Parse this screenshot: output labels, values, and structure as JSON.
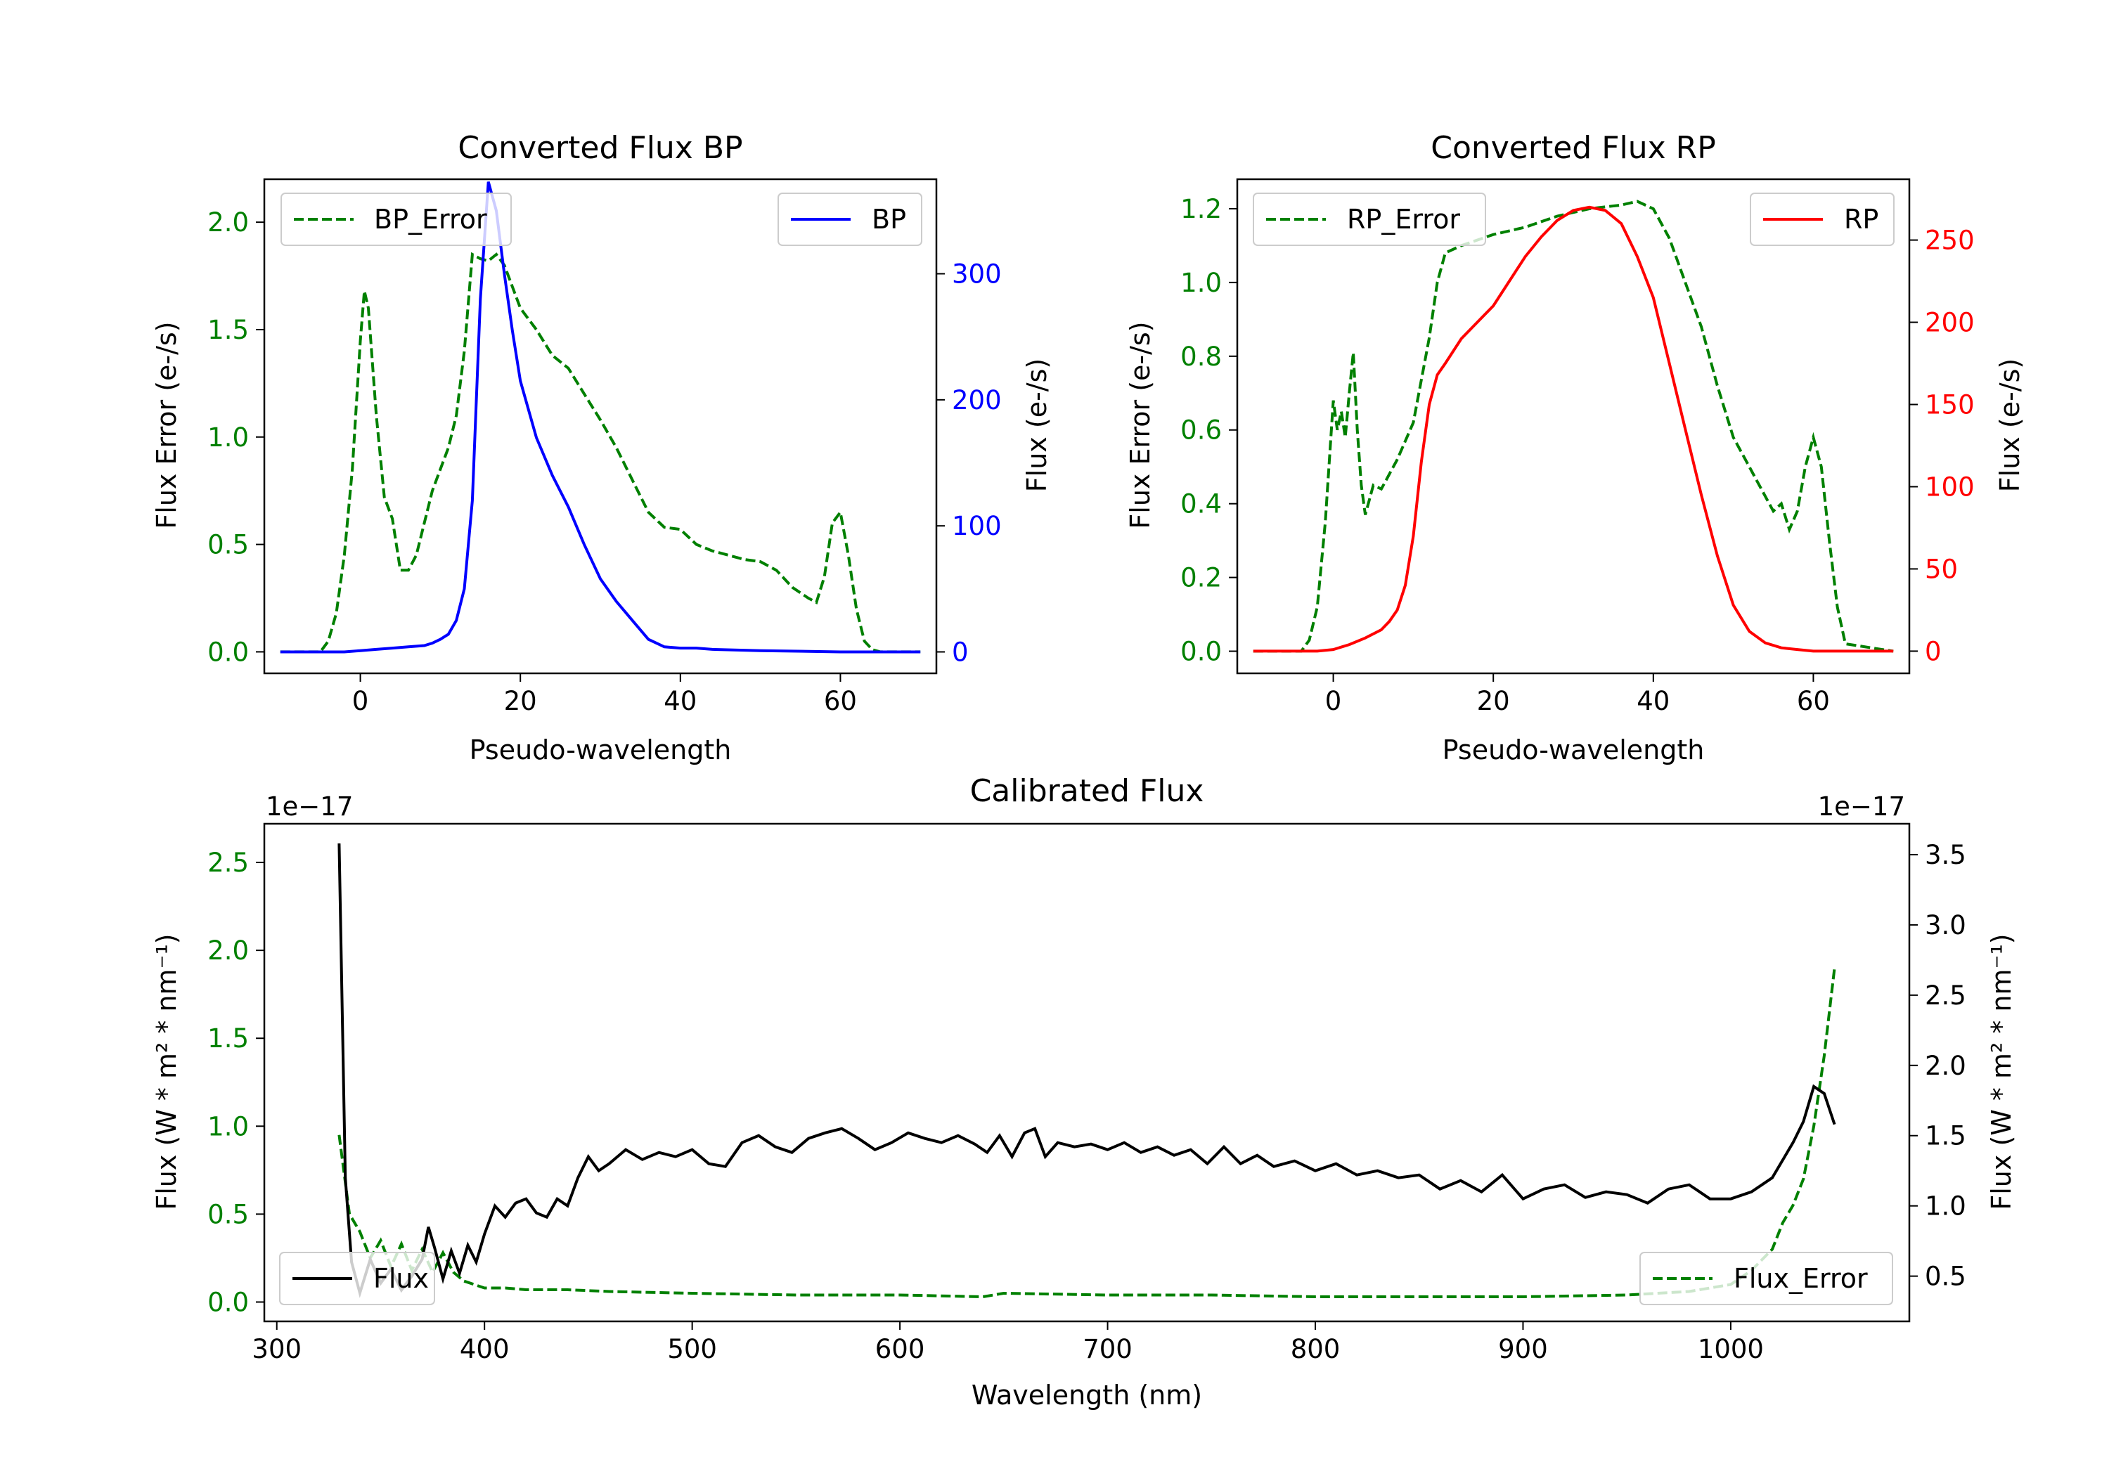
{
  "chart_data": [
    {
      "id": "bp",
      "type": "line",
      "title": "Converted Flux BP",
      "xlabel": "Pseudo-wavelength",
      "ylabel_left": "Flux Error (e-/s)",
      "ylabel_right": "Flux (e-/s)",
      "xlim": [
        -12,
        72
      ],
      "ylim_left": [
        -0.1,
        2.2
      ],
      "ylim_right": [
        -17,
        375
      ],
      "xticks": [
        0,
        20,
        40,
        60
      ],
      "yticks_left": [
        0.0,
        0.5,
        1.0,
        1.5,
        2.0
      ],
      "yticks_left_labels": [
        "0.0",
        "0.5",
        "1.0",
        "1.5",
        "2.0"
      ],
      "yticks_right": [
        0,
        100,
        200,
        300
      ],
      "left_color": "#008000",
      "right_color": "#0000ff",
      "legend_left": {
        "label": "BP_Error",
        "position": "upper left"
      },
      "legend_right": {
        "label": "BP",
        "position": "upper right"
      },
      "series_left": {
        "name": "BP_Error",
        "style": "dashed",
        "color": "#008000",
        "x": [
          -10,
          -5,
          -4,
          -3,
          -2,
          -1,
          0,
          0.5,
          1,
          2,
          3,
          4,
          5,
          6,
          7,
          8,
          9,
          10,
          11,
          12,
          13,
          14,
          15,
          16,
          17,
          18,
          19,
          20,
          22,
          24,
          26,
          28,
          30,
          32,
          34,
          36,
          38,
          40,
          42,
          44,
          46,
          48,
          50,
          52,
          54,
          56,
          57,
          58,
          59,
          60,
          61,
          62,
          63,
          64,
          65,
          70
        ],
        "y": [
          0.0,
          0.0,
          0.05,
          0.18,
          0.45,
          0.85,
          1.45,
          1.68,
          1.6,
          1.1,
          0.72,
          0.62,
          0.38,
          0.38,
          0.45,
          0.6,
          0.75,
          0.85,
          0.95,
          1.1,
          1.4,
          1.85,
          1.83,
          1.82,
          1.85,
          1.8,
          1.7,
          1.6,
          1.5,
          1.38,
          1.32,
          1.2,
          1.08,
          0.95,
          0.8,
          0.65,
          0.58,
          0.57,
          0.5,
          0.47,
          0.45,
          0.43,
          0.42,
          0.38,
          0.3,
          0.25,
          0.23,
          0.35,
          0.6,
          0.65,
          0.45,
          0.2,
          0.05,
          0.01,
          0.0,
          0.0
        ]
      },
      "series_right": {
        "name": "BP",
        "style": "solid",
        "color": "#0000ff",
        "x": [
          -10,
          -2,
          0,
          2,
          4,
          6,
          8,
          9,
          10,
          11,
          12,
          13,
          14,
          15,
          16,
          17,
          18,
          19,
          20,
          22,
          24,
          26,
          28,
          30,
          32,
          34,
          36,
          38,
          40,
          42,
          44,
          50,
          60,
          70
        ],
        "y": [
          0,
          0,
          1,
          2,
          3,
          4,
          5,
          7,
          10,
          14,
          25,
          50,
          120,
          280,
          373,
          350,
          300,
          255,
          215,
          170,
          140,
          115,
          85,
          58,
          40,
          25,
          10,
          4,
          3,
          3,
          2,
          1,
          0,
          0
        ]
      }
    },
    {
      "id": "rp",
      "type": "line",
      "title": "Converted Flux RP",
      "xlabel": "Pseudo-wavelength",
      "ylabel_left": "Flux Error (e-/s)",
      "ylabel_right": "Flux (e-/s)",
      "xlim": [
        -12,
        72
      ],
      "ylim_left": [
        -0.06,
        1.28
      ],
      "ylim_right": [
        -13.5,
        287
      ],
      "xticks": [
        0,
        20,
        40,
        60
      ],
      "yticks_left": [
        0.0,
        0.2,
        0.4,
        0.6,
        0.8,
        1.0,
        1.2
      ],
      "yticks_left_labels": [
        "0.0",
        "0.2",
        "0.4",
        "0.6",
        "0.8",
        "1.0",
        "1.2"
      ],
      "yticks_right": [
        0,
        50,
        100,
        150,
        200,
        250
      ],
      "left_color": "#008000",
      "right_color": "#ff0000",
      "legend_left": {
        "label": "RP_Error",
        "position": "upper left"
      },
      "legend_right": {
        "label": "RP",
        "position": "upper right"
      },
      "series_left": {
        "name": "RP_Error",
        "style": "dashed",
        "color": "#008000",
        "x": [
          -10,
          -4,
          -3,
          -2,
          -1,
          0,
          0.5,
          1,
          1.5,
          2,
          2.5,
          3,
          3.5,
          4,
          5,
          6,
          8,
          10,
          12,
          13,
          14,
          16,
          20,
          24,
          28,
          32,
          36,
          38,
          40,
          42,
          44,
          46,
          48,
          50,
          52,
          54,
          55,
          56,
          57,
          58,
          59,
          60,
          61,
          62,
          63,
          64,
          70
        ],
        "y": [
          0.0,
          0.0,
          0.03,
          0.12,
          0.35,
          0.68,
          0.6,
          0.65,
          0.58,
          0.7,
          0.81,
          0.6,
          0.45,
          0.37,
          0.45,
          0.44,
          0.52,
          0.62,
          0.85,
          1.0,
          1.08,
          1.1,
          1.13,
          1.15,
          1.18,
          1.2,
          1.21,
          1.22,
          1.2,
          1.12,
          1.0,
          0.88,
          0.72,
          0.58,
          0.5,
          0.42,
          0.38,
          0.4,
          0.33,
          0.38,
          0.5,
          0.58,
          0.5,
          0.3,
          0.12,
          0.02,
          0.0
        ]
      },
      "series_right": {
        "name": "RP",
        "style": "solid",
        "color": "#ff0000",
        "x": [
          -10,
          -2,
          0,
          2,
          4,
          6,
          7,
          8,
          9,
          10,
          11,
          12,
          13,
          14,
          16,
          18,
          20,
          22,
          24,
          26,
          28,
          30,
          32,
          34,
          36,
          38,
          40,
          42,
          44,
          46,
          48,
          50,
          52,
          54,
          56,
          58,
          60,
          62,
          64,
          70
        ],
        "y": [
          0,
          0,
          1,
          4,
          8,
          13,
          18,
          25,
          40,
          70,
          115,
          150,
          168,
          175,
          190,
          200,
          210,
          225,
          240,
          252,
          262,
          268,
          270,
          268,
          260,
          240,
          215,
          175,
          135,
          95,
          58,
          28,
          12,
          5,
          2,
          1,
          0,
          0,
          0,
          0
        ]
      }
    },
    {
      "id": "calibrated",
      "type": "line",
      "title": "Calibrated Flux",
      "xlabel": "Wavelength (nm)",
      "ylabel_left": "Flux (W * m² * nm⁻¹)",
      "ylabel_right": "Flux (W * m² * nm⁻¹)",
      "offset_left": "1e−17",
      "offset_right": "1e−17",
      "xlim": [
        294,
        1086
      ],
      "ylim_left": [
        -0.11,
        2.72
      ],
      "ylim_right": [
        0.178,
        3.72
      ],
      "xticks": [
        300,
        400,
        500,
        600,
        700,
        800,
        900,
        1000
      ],
      "yticks_left": [
        0.0,
        0.5,
        1.0,
        1.5,
        2.0,
        2.5
      ],
      "yticks_left_labels": [
        "0.0",
        "0.5",
        "1.0",
        "1.5",
        "2.0",
        "2.5"
      ],
      "yticks_right": [
        0.5,
        1.0,
        1.5,
        2.0,
        2.5,
        3.0,
        3.5
      ],
      "yticks_right_labels": [
        "0.5",
        "1.0",
        "1.5",
        "2.0",
        "2.5",
        "3.0",
        "3.5"
      ],
      "left_color": "#008000",
      "right_color": "#000000",
      "legend_left": {
        "label": "Flux",
        "position": "lower left"
      },
      "legend_right": {
        "label": "Flux_Error",
        "position": "lower right"
      },
      "series_left": {
        "name": "Flux_Error",
        "style": "dashed",
        "color": "#008000",
        "x": [
          330,
          335,
          340,
          345,
          350,
          355,
          360,
          365,
          370,
          375,
          380,
          385,
          390,
          395,
          400,
          410,
          420,
          440,
          460,
          500,
          550,
          600,
          640,
          650,
          700,
          750,
          800,
          850,
          900,
          950,
          980,
          1000,
          1010,
          1020,
          1025,
          1030,
          1035,
          1040,
          1045,
          1050
        ],
        "y": [
          0.95,
          0.5,
          0.4,
          0.25,
          0.35,
          0.2,
          0.33,
          0.18,
          0.3,
          0.17,
          0.28,
          0.17,
          0.12,
          0.1,
          0.08,
          0.08,
          0.07,
          0.07,
          0.06,
          0.05,
          0.04,
          0.04,
          0.03,
          0.05,
          0.04,
          0.04,
          0.03,
          0.03,
          0.03,
          0.04,
          0.06,
          0.1,
          0.18,
          0.3,
          0.45,
          0.55,
          0.7,
          1.0,
          1.4,
          1.9
        ]
      },
      "series_right": {
        "name": "Flux",
        "style": "solid",
        "color": "#000000",
        "x": [
          330,
          333,
          336,
          340,
          345,
          350,
          355,
          360,
          365,
          370,
          373,
          376,
          380,
          384,
          388,
          392,
          396,
          400,
          405,
          410,
          415,
          420,
          425,
          430,
          435,
          440,
          445,
          450,
          455,
          460,
          468,
          476,
          484,
          492,
          500,
          508,
          516,
          524,
          532,
          540,
          548,
          556,
          564,
          572,
          580,
          588,
          596,
          604,
          612,
          620,
          628,
          636,
          642,
          648,
          654,
          660,
          665,
          670,
          676,
          684,
          692,
          700,
          708,
          716,
          724,
          732,
          740,
          748,
          756,
          764,
          772,
          780,
          790,
          800,
          810,
          820,
          830,
          840,
          850,
          860,
          870,
          880,
          890,
          900,
          910,
          920,
          930,
          940,
          950,
          960,
          970,
          980,
          990,
          1000,
          1010,
          1020,
          1030,
          1035,
          1040,
          1045,
          1050
        ],
        "y": [
          3.58,
          1.2,
          0.6,
          0.38,
          0.62,
          0.45,
          0.55,
          0.4,
          0.5,
          0.62,
          0.85,
          0.7,
          0.48,
          0.68,
          0.52,
          0.72,
          0.6,
          0.8,
          1.0,
          0.92,
          1.02,
          1.05,
          0.95,
          0.92,
          1.05,
          1.0,
          1.2,
          1.35,
          1.25,
          1.3,
          1.4,
          1.33,
          1.38,
          1.35,
          1.4,
          1.3,
          1.28,
          1.45,
          1.5,
          1.42,
          1.38,
          1.48,
          1.52,
          1.55,
          1.48,
          1.4,
          1.45,
          1.52,
          1.48,
          1.45,
          1.5,
          1.44,
          1.38,
          1.5,
          1.35,
          1.52,
          1.55,
          1.35,
          1.45,
          1.42,
          1.44,
          1.4,
          1.45,
          1.38,
          1.42,
          1.36,
          1.4,
          1.3,
          1.42,
          1.3,
          1.36,
          1.28,
          1.32,
          1.25,
          1.3,
          1.22,
          1.25,
          1.2,
          1.22,
          1.12,
          1.18,
          1.1,
          1.22,
          1.05,
          1.12,
          1.15,
          1.06,
          1.1,
          1.08,
          1.02,
          1.12,
          1.15,
          1.05,
          1.05,
          1.1,
          1.2,
          1.45,
          1.6,
          1.85,
          1.8,
          1.58
        ]
      }
    }
  ]
}
